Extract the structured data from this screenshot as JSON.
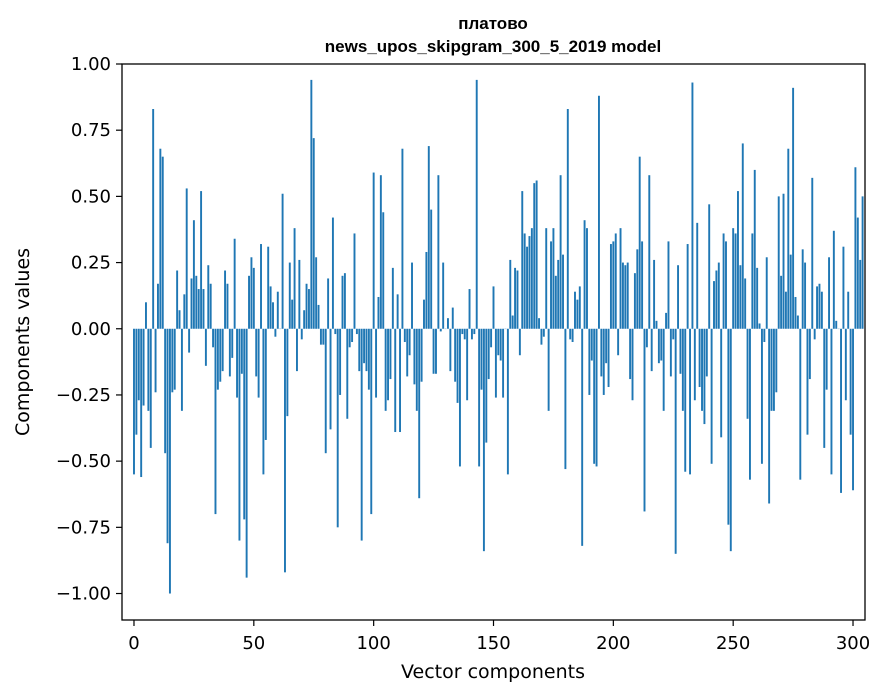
{
  "chart_data": {
    "type": "bar",
    "title": "платово",
    "subtitle": "news_upos_skipgram_300_5_2019 model",
    "xlabel": "Vector components",
    "ylabel": "Components values",
    "xlim": [
      -5,
      305
    ],
    "ylim": [
      -1.1,
      1.0
    ],
    "x_ticks": [
      0,
      50,
      100,
      150,
      200,
      250,
      300
    ],
    "x_tick_labels": [
      "0",
      "50",
      "100",
      "150",
      "200",
      "250",
      "300"
    ],
    "y_ticks": [
      1.0,
      0.75,
      0.5,
      0.25,
      0.0,
      -0.25,
      -0.5,
      -0.75,
      -1.0
    ],
    "y_tick_labels": [
      "1.00",
      "0.75",
      "0.50",
      "0.25",
      "0.00",
      "−0.25",
      "−0.50",
      "−0.75",
      "−1.00"
    ],
    "bar_color": "#1f77b4",
    "grid": false,
    "values": [
      -0.55,
      -0.4,
      -0.27,
      -0.56,
      -0.29,
      0.1,
      -0.31,
      -0.45,
      0.83,
      -0.24,
      0.17,
      0.68,
      0.65,
      -0.47,
      -0.81,
      -1.0,
      -0.24,
      -0.23,
      0.22,
      0.07,
      -0.31,
      0.13,
      0.53,
      -0.09,
      0.19,
      0.41,
      0.2,
      0.15,
      0.52,
      0.15,
      -0.14,
      0.24,
      0.17,
      -0.07,
      -0.7,
      -0.23,
      -0.2,
      -0.16,
      0.22,
      0.17,
      -0.18,
      -0.11,
      0.34,
      -0.26,
      -0.8,
      -0.17,
      -0.72,
      -0.94,
      0.2,
      0.27,
      0.23,
      -0.18,
      -0.26,
      0.32,
      -0.55,
      -0.42,
      0.31,
      0.16,
      0.1,
      -0.03,
      0.14,
      0.0,
      0.51,
      -0.92,
      -0.33,
      0.25,
      0.11,
      0.38,
      -0.16,
      0.26,
      -0.04,
      0.07,
      0.17,
      0.15,
      0.94,
      0.72,
      0.27,
      0.09,
      -0.06,
      -0.06,
      -0.47,
      0.19,
      -0.38,
      0.42,
      -0.02,
      -0.75,
      -0.25,
      0.2,
      0.21,
      -0.34,
      -0.07,
      -0.05,
      0.36,
      -0.02,
      -0.16,
      -0.8,
      -0.13,
      -0.16,
      -0.23,
      -0.7,
      0.59,
      -0.26,
      0.12,
      0.58,
      0.44,
      -0.31,
      -0.27,
      -0.19,
      0.23,
      -0.39,
      0.13,
      -0.39,
      0.68,
      -0.05,
      -0.18,
      -0.1,
      0.25,
      -0.21,
      -0.31,
      -0.64,
      -0.2,
      0.11,
      0.29,
      0.69,
      0.45,
      -0.17,
      -0.17,
      0.58,
      -0.01,
      0.25,
      0.0,
      0.04,
      -0.16,
      0.08,
      -0.2,
      -0.28,
      -0.52,
      -0.02,
      -0.04,
      -0.27,
      0.15,
      -0.04,
      -0.02,
      0.94,
      -0.52,
      -0.23,
      -0.84,
      -0.43,
      -0.19,
      -0.07,
      0.16,
      -0.26,
      -0.1,
      -0.12,
      -0.26,
      0.0,
      -0.55,
      0.26,
      0.05,
      0.23,
      0.22,
      -0.1,
      0.52,
      0.36,
      0.31,
      0.35,
      0.38,
      0.55,
      0.56,
      0.04,
      -0.06,
      -0.03,
      0.38,
      -0.31,
      0.33,
      0.38,
      0.2,
      0.26,
      0.58,
      0.28,
      -0.53,
      0.83,
      -0.04,
      -0.05,
      0.14,
      0.11,
      0.16,
      -0.82,
      0.41,
      0.38,
      -0.25,
      -0.12,
      -0.51,
      -0.52,
      0.88,
      -0.18,
      -0.25,
      -0.13,
      -0.22,
      0.32,
      0.33,
      0.36,
      -0.1,
      0.38,
      0.25,
      0.24,
      0.25,
      -0.19,
      -0.27,
      0.21,
      0.3,
      0.65,
      0.33,
      -0.69,
      -0.07,
      0.58,
      -0.16,
      0.26,
      0.03,
      -0.13,
      -0.12,
      -0.31,
      0.06,
      0.33,
      -0.18,
      -0.04,
      -0.85,
      0.24,
      -0.17,
      -0.31,
      -0.54,
      0.32,
      -0.55,
      0.93,
      -0.27,
      0.4,
      -0.22,
      -0.31,
      -0.36,
      -0.18,
      0.47,
      -0.51,
      0.18,
      0.22,
      0.25,
      -0.41,
      0.36,
      0.33,
      -0.74,
      -0.84,
      0.38,
      0.36,
      0.52,
      0.24,
      0.7,
      0.19,
      -0.34,
      -0.57,
      0.36,
      0.6,
      0.23,
      0.02,
      -0.51,
      -0.05,
      0.27,
      -0.66,
      -0.31,
      -0.31,
      -0.24,
      0.5,
      0.2,
      0.51,
      0.14,
      0.68,
      0.28,
      0.91,
      0.12,
      0.05,
      -0.57,
      0.3,
      0.25,
      -0.4,
      -0.19,
      0.57,
      -0.04,
      0.16,
      0.17,
      0.14,
      -0.45,
      -0.23,
      0.27,
      -0.55,
      0.37,
      0.03,
      0.0,
      -0.62,
      0.31,
      -0.27,
      0.14,
      -0.4,
      -0.61,
      0.61,
      0.42,
      0.26,
      0.5
    ]
  }
}
